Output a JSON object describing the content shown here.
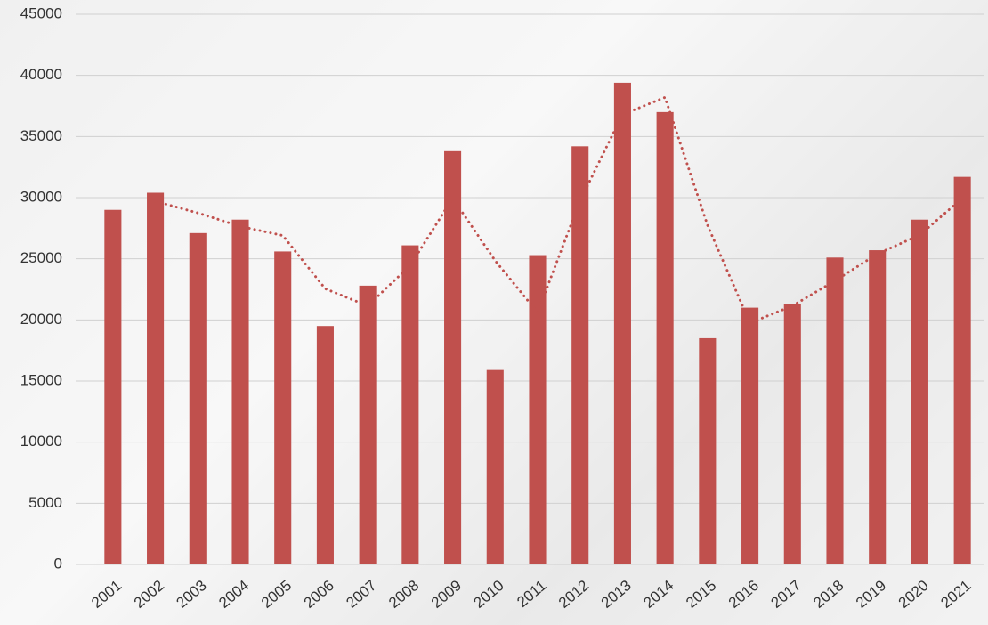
{
  "chart_data": {
    "type": "bar",
    "categories": [
      "2001",
      "2002",
      "2003",
      "2004",
      "2005",
      "2006",
      "2007",
      "2008",
      "2009",
      "2010",
      "2011",
      "2012",
      "2013",
      "2014",
      "2015",
      "2016",
      "2017",
      "2018",
      "2019",
      "2020",
      "2021"
    ],
    "values": [
      29000,
      30400,
      27100,
      28200,
      25600,
      19500,
      22800,
      26100,
      33800,
      15900,
      25300,
      34200,
      39400,
      37000,
      18500,
      21000,
      21300,
      25100,
      25700,
      28200,
      31700
    ],
    "color": "#c0504d",
    "trend": {
      "type": "line",
      "style": "dotted",
      "color": "#c0504d",
      "values": [
        null,
        29700,
        28750,
        27650,
        26900,
        22550,
        21150,
        24450,
        29950,
        24850,
        20600,
        29750,
        36800,
        38200,
        27750,
        19750,
        21150,
        23200,
        25400,
        26950,
        29950
      ]
    },
    "ylim": [
      0,
      45000
    ],
    "yticks": [
      0,
      5000,
      10000,
      15000,
      20000,
      25000,
      30000,
      35000,
      40000,
      45000
    ],
    "grid": true
  }
}
